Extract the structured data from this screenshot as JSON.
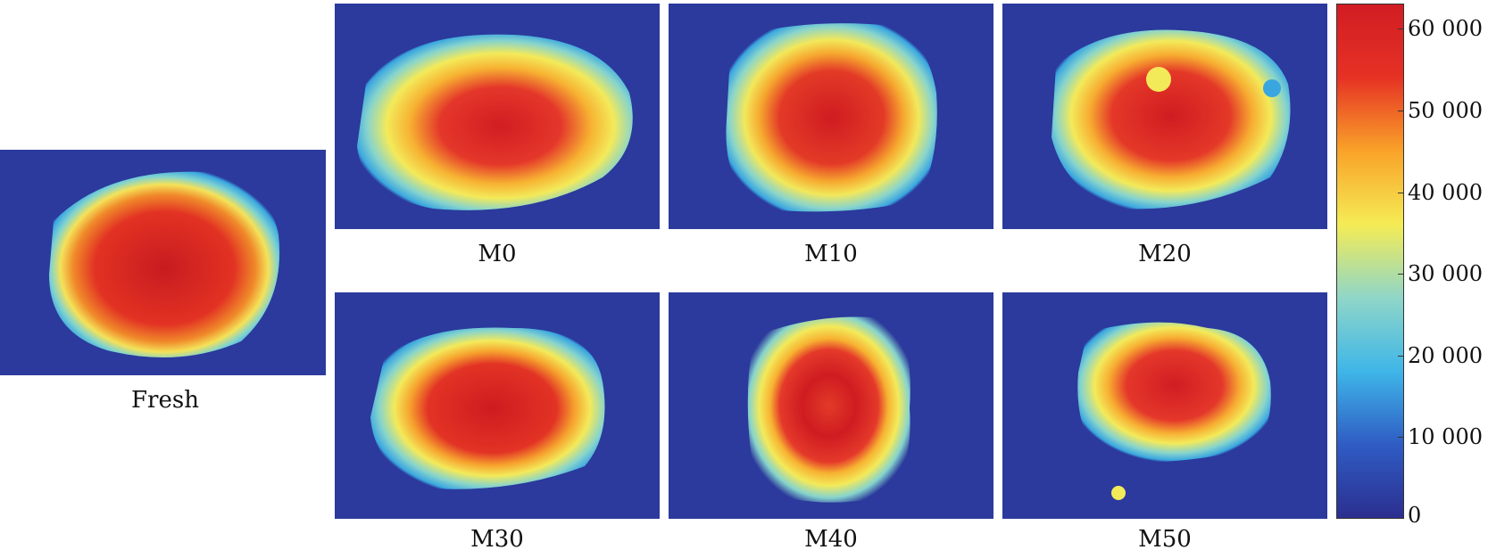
{
  "panels": {
    "fresh": "Fresh",
    "m0": "M0",
    "m10": "M10",
    "m20": "M20",
    "m30": "M30",
    "m40": "M40",
    "m50": "M50"
  },
  "colorbar": {
    "ticks": [
      "60 000",
      "50 000",
      "40 000",
      "30 000",
      "20 000",
      "10 000",
      "0"
    ],
    "min": 0,
    "max": 63000,
    "colors": [
      "#2b2f8f",
      "#2f5cc4",
      "#3fb6e8",
      "#8fd6c8",
      "#f5ec55",
      "#f9a329",
      "#e63224",
      "#d11d23"
    ]
  }
}
